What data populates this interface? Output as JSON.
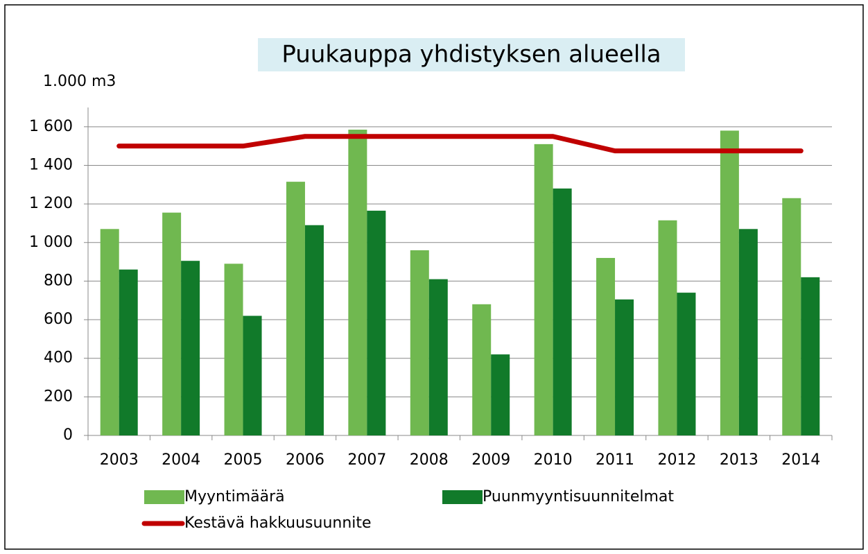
{
  "chart_data": {
    "type": "bar",
    "title": "Puukauppa yhdistyksen alueella",
    "y_label": "1.000 m3",
    "categories": [
      "2003",
      "2004",
      "2005",
      "2006",
      "2007",
      "2008",
      "2009",
      "2010",
      "2011",
      "2012",
      "2013",
      "2014"
    ],
    "series": [
      {
        "name": "Myyntimäärä",
        "color": "#70b850",
        "type": "bar",
        "values": [
          1070,
          1155,
          890,
          1315,
          1585,
          960,
          680,
          1510,
          920,
          1115,
          1580,
          1230
        ]
      },
      {
        "name": "Puunmyyntisuunnitelmat",
        "color": "#117a2a",
        "type": "bar",
        "values": [
          860,
          905,
          620,
          1090,
          1165,
          810,
          420,
          1280,
          705,
          740,
          1070,
          820
        ]
      },
      {
        "name": "Kestävä hakkuusuunnite",
        "color": "#c00000",
        "type": "line",
        "values": [
          1500,
          1500,
          1500,
          1550,
          1550,
          1550,
          1550,
          1550,
          1475,
          1475,
          1475,
          1475
        ]
      }
    ],
    "ylim": [
      0,
      1700
    ],
    "yticks": [
      0,
      200,
      400,
      600,
      800,
      {
        "value": 1000,
        "label": "1 000"
      },
      {
        "value": 1200,
        "label": "1 200"
      },
      {
        "value": 1400,
        "label": "1 400"
      },
      {
        "value": 1600,
        "label": "1 600"
      }
    ],
    "grid": true
  }
}
